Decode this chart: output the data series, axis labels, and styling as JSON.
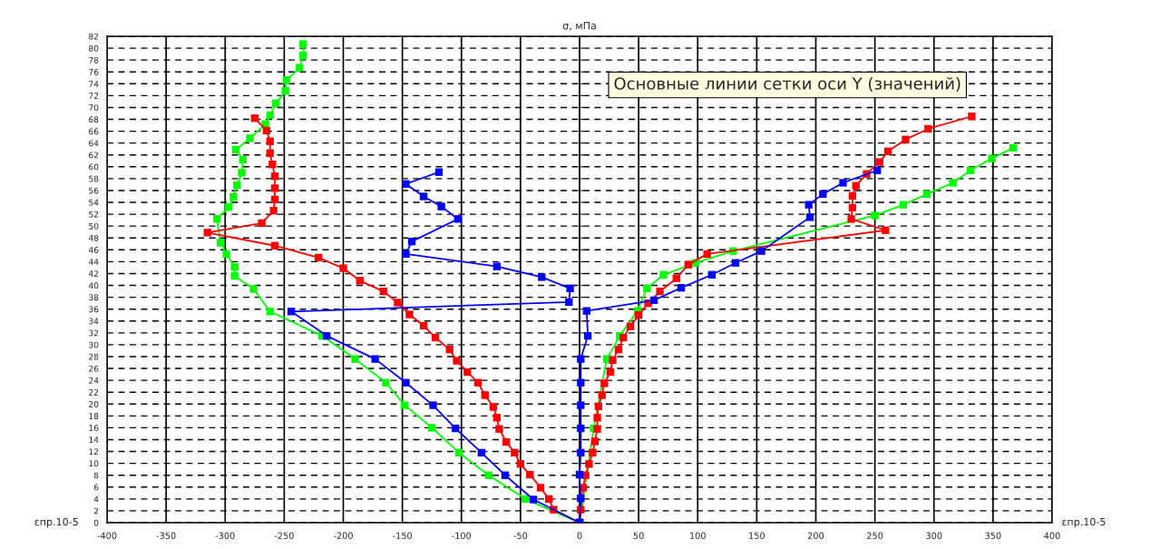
{
  "chart_data": {
    "type": "line",
    "ylabel": "σ, мПа",
    "xlabel": "εпр.10-5",
    "xlim": [
      -400,
      400
    ],
    "xticks": [
      -400,
      -350,
      -300,
      -250,
      -200,
      -150,
      -100,
      -50,
      0,
      50,
      100,
      150,
      200,
      250,
      300,
      350,
      400
    ],
    "ylim": [
      0,
      82
    ],
    "yticks": [
      0,
      2,
      4,
      6,
      8,
      10,
      12,
      14,
      16,
      18,
      20,
      22,
      24,
      26,
      28,
      30,
      32,
      34,
      36,
      38,
      40,
      42,
      44,
      46,
      48,
      50,
      52,
      54,
      56,
      58,
      60,
      62,
      64,
      66,
      68,
      70,
      72,
      74,
      76,
      78,
      80,
      82
    ],
    "grid": true,
    "legend": false,
    "marker": "square",
    "line_style": "solid",
    "annotations": [
      "Основные линии сетки оси Y (значений)"
    ],
    "series": [
      {
        "color": "#00ff00",
        "x": [
          0,
          -46,
          -77,
          -102,
          -125,
          -148,
          -164,
          -190,
          -218,
          -262,
          -276,
          -292,
          -292,
          -299,
          -304,
          -307,
          -297,
          -293,
          -290,
          -286,
          -285,
          -291,
          -279,
          -266,
          -262,
          -257,
          -249,
          -248,
          -237,
          -234,
          -234
        ],
        "values": [
          0,
          4,
          8,
          11.8,
          16,
          19.8,
          23.6,
          27.6,
          31.5,
          35.6,
          39.4,
          41.6,
          43.1,
          45.3,
          47.2,
          51.2,
          53.2,
          54.9,
          56.9,
          59,
          61.2,
          62.9,
          64.8,
          67.2,
          68.7,
          70.7,
          72.8,
          74.6,
          76.7,
          78.8,
          80.7
        ]
      },
      {
        "color": "#00ff00",
        "x": [
          0,
          12,
          23,
          34,
          49,
          57,
          71,
          98,
          130,
          250,
          274,
          294,
          316,
          331,
          349,
          367
        ],
        "values": [
          0,
          15.9,
          27.6,
          31.5,
          35.7,
          39.5,
          41.8,
          43.8,
          45.8,
          51.8,
          53.6,
          55.4,
          57.3,
          59.4,
          61.4,
          63.2
        ]
      },
      {
        "color": "#ff0000",
        "x": [
          0,
          -22,
          -26,
          -33,
          -42,
          -50,
          -55,
          -62,
          -68,
          -70,
          -73,
          -80,
          -86,
          -95,
          -104,
          -110,
          -122,
          -132,
          -144,
          -154,
          -166,
          -186,
          -200,
          -221,
          -258,
          -315,
          -269,
          -259,
          -258,
          -258,
          -258,
          -260,
          -262,
          -262,
          -265,
          -275
        ],
        "values": [
          0,
          2.2,
          4,
          5.9,
          8.1,
          9.9,
          11.8,
          13.6,
          15.8,
          17.7,
          19.5,
          21.5,
          23.6,
          25.4,
          27.3,
          29.2,
          31.2,
          33.2,
          35.1,
          37.1,
          39,
          40.8,
          42.9,
          44.7,
          46.7,
          48.9,
          50.5,
          52.6,
          54.5,
          56.4,
          58.4,
          60.4,
          62.3,
          64.3,
          66.1,
          68.2
        ]
      },
      {
        "color": "#ff0000",
        "x": [
          0,
          1,
          3,
          5,
          8,
          11,
          13,
          15,
          15,
          16,
          19,
          21,
          26,
          28,
          33,
          37,
          43,
          50,
          58,
          68,
          82,
          92,
          108,
          259,
          230,
          231,
          231,
          234,
          243,
          254,
          261,
          276,
          295,
          332
        ],
        "values": [
          0,
          2.2,
          5.9,
          8,
          9.9,
          11.8,
          13.7,
          15.8,
          17.7,
          19.6,
          21.5,
          23.5,
          25.4,
          27.4,
          29.2,
          31.2,
          33.1,
          35,
          37,
          39,
          41.2,
          43.5,
          45.3,
          49.3,
          51.2,
          53.1,
          55.1,
          56.8,
          58.8,
          60.8,
          62.6,
          64.6,
          66.4,
          68.5
        ]
      },
      {
        "color": "#0000ff",
        "x": [
          0,
          -39,
          -63,
          -83,
          -105,
          -124,
          -147,
          -173,
          -214,
          -244,
          -9,
          -8,
          -32,
          -70,
          -147,
          -142,
          -103,
          -117,
          -132,
          -147,
          -119
        ],
        "values": [
          0,
          3.9,
          8,
          11.8,
          15.9,
          19.8,
          23.6,
          27.6,
          31.5,
          35.6,
          37.2,
          39.5,
          41.4,
          43.2,
          45.3,
          47.4,
          51.2,
          53.3,
          55,
          57.1,
          59.1
        ]
      },
      {
        "color": "#0000ff",
        "x": [
          0,
          1,
          0,
          1,
          1,
          1,
          1,
          1,
          7,
          6,
          63,
          86,
          112,
          132,
          154,
          195,
          194,
          206,
          223,
          252
        ],
        "values": [
          0,
          4.1,
          8.1,
          11.8,
          15.9,
          19.8,
          23.6,
          27.6,
          31.5,
          35.7,
          37.5,
          39.6,
          41.8,
          43.8,
          45.8,
          51.5,
          53.6,
          55.4,
          57.3,
          59.4
        ]
      }
    ]
  }
}
